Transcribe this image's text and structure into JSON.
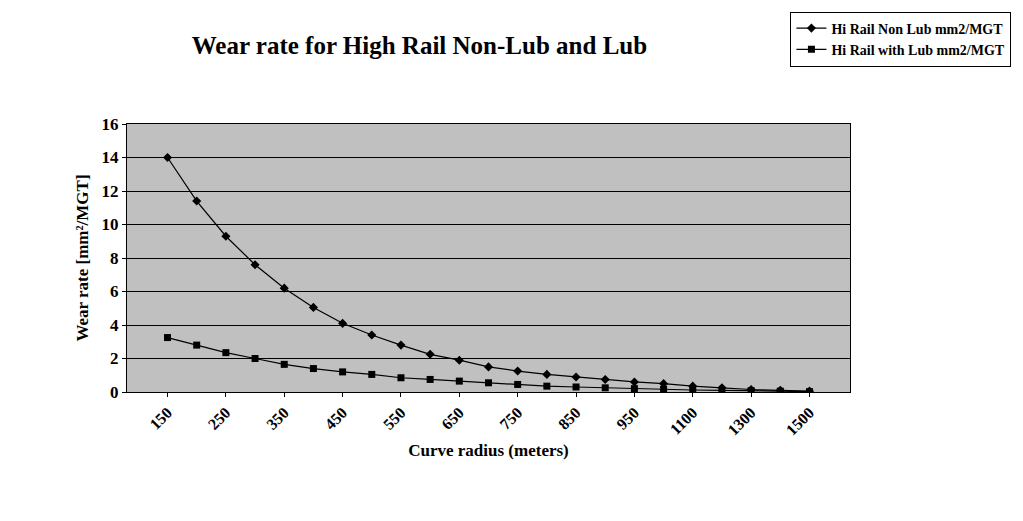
{
  "chart_data": {
    "type": "line",
    "title": "Wear rate for High Rail Non-Lub and Lub",
    "x_label": "Curve radius (meters)",
    "y_label": "Wear rate [mm²/MGT]",
    "categories": [
      "150",
      null,
      "250",
      null,
      "350",
      null,
      "450",
      null,
      "550",
      null,
      "650",
      null,
      "750",
      null,
      "850",
      null,
      "950",
      null,
      "1100",
      null,
      "1300",
      null,
      "1500"
    ],
    "series": [
      {
        "name": "Hi Rail Non Lub mm2/MGT",
        "color": "#000000",
        "marker": "diamond",
        "values": [
          14,
          11.4,
          9.3,
          7.6,
          6.2,
          5.05,
          4.1,
          3.4,
          2.8,
          2.25,
          1.9,
          1.5,
          1.25,
          1.05,
          0.9,
          0.75,
          0.6,
          0.5,
          0.35,
          0.25,
          0.15,
          0.1,
          0.05
        ]
      },
      {
        "name": "Hi Rail with Lub mm2/MGT",
        "color": "#000000",
        "marker": "square",
        "values": [
          3.25,
          2.8,
          2.35,
          2.0,
          1.65,
          1.4,
          1.2,
          1.05,
          0.85,
          0.75,
          0.65,
          0.55,
          0.45,
          0.35,
          0.3,
          0.25,
          0.2,
          0.15,
          0.12,
          0.1,
          0.08,
          0.05,
          0.02
        ]
      }
    ],
    "ylim": [
      0,
      16
    ],
    "yticks": [
      0,
      2,
      4,
      6,
      8,
      10,
      12,
      14,
      16
    ],
    "grid": true,
    "legend": "top right"
  }
}
